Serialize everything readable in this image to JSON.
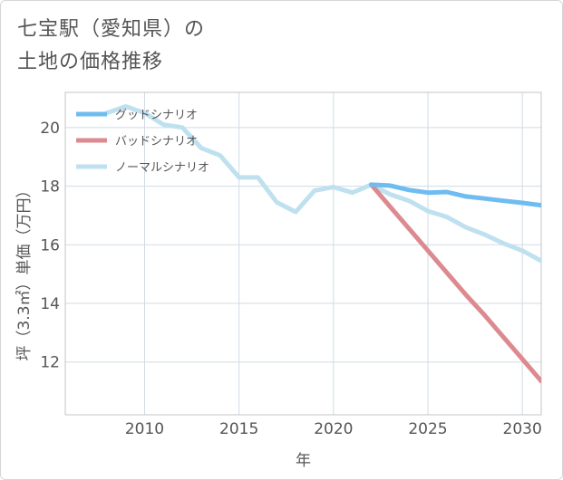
{
  "title": {
    "line1": "七宝駅（愛知県）の",
    "line2": "土地の価格推移"
  },
  "colors": {
    "good": "#6fbcf0",
    "bad": "#dc8a90",
    "normal": "#bfe1ef",
    "grid": "#cfdbe6",
    "axis": "#555555"
  },
  "chart_data": {
    "type": "line",
    "title": "七宝駅（愛知県）の土地の価格推移",
    "xlabel": "年",
    "ylabel": "坪（3.3㎡）単価（万円）",
    "xlim": [
      2005.8,
      2031
    ],
    "ylim": [
      10.2,
      21.2
    ],
    "xticks": [
      2010,
      2015,
      2020,
      2025,
      2030
    ],
    "yticks": [
      12,
      14,
      16,
      18,
      20
    ],
    "legend_position": "top-left",
    "series": [
      {
        "key": "good",
        "name": "グッドシナリオ",
        "x": [
          2022,
          2023,
          2024,
          2025,
          2026,
          2027,
          2028,
          2029,
          2030,
          2031
        ],
        "y": [
          18.05,
          18.02,
          17.87,
          17.78,
          17.8,
          17.65,
          17.58,
          17.5,
          17.43,
          17.35
        ]
      },
      {
        "key": "bad",
        "name": "バッドシナリオ",
        "x": [
          2022,
          2023,
          2024,
          2025,
          2026,
          2027,
          2028,
          2029,
          2030,
          2031
        ],
        "y": [
          18.05,
          17.3,
          16.55,
          15.8,
          15.05,
          14.3,
          13.6,
          12.85,
          12.1,
          11.35
        ]
      },
      {
        "key": "normal",
        "name": "ノーマルシナリオ",
        "x": [
          2008,
          2009,
          2010,
          2011,
          2012,
          2013,
          2014,
          2015,
          2016,
          2017,
          2018,
          2019,
          2020,
          2021,
          2022,
          2023,
          2024,
          2025,
          2026,
          2027,
          2028,
          2029,
          2030,
          2031
        ],
        "y": [
          20.5,
          20.72,
          20.5,
          20.1,
          20.0,
          19.3,
          19.05,
          18.3,
          18.3,
          17.45,
          17.12,
          17.85,
          17.97,
          17.78,
          18.05,
          17.72,
          17.5,
          17.15,
          16.95,
          16.6,
          16.35,
          16.05,
          15.8,
          15.45
        ]
      }
    ]
  }
}
